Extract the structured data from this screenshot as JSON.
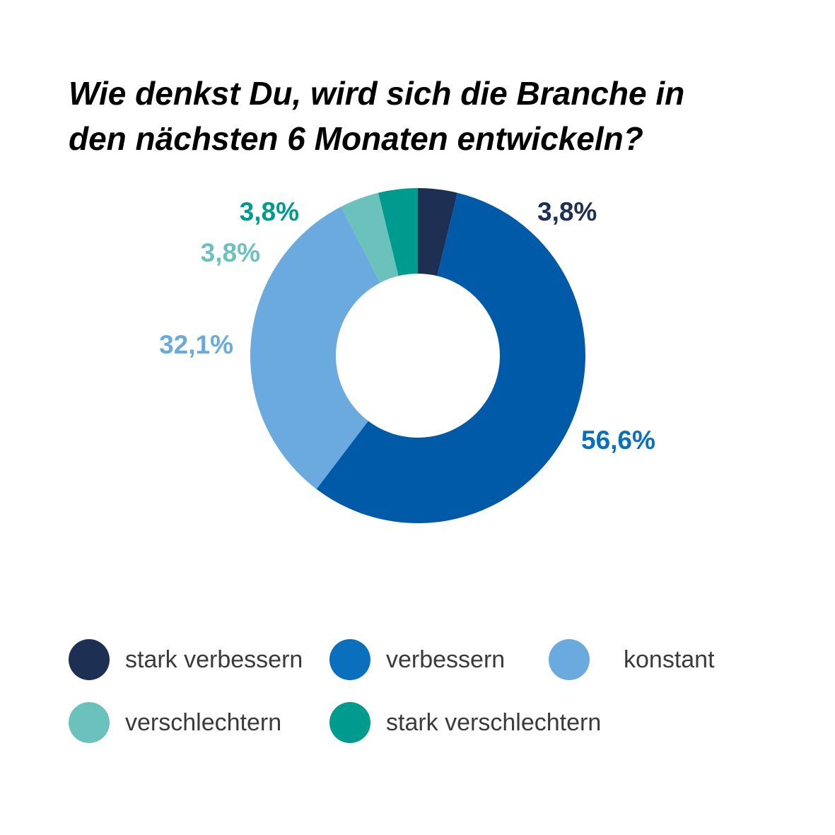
{
  "title": {
    "line1": "Wie denkst Du, wird sich die Branche in",
    "line2": "den nächsten 6 Monaten entwickeln?"
  },
  "chart_data": {
    "type": "pie",
    "variant": "donut",
    "title": "Wie denkst Du, wird sich die Branche in den nächsten 6 Monaten entwickeln?",
    "unit": "%",
    "legend_position": "bottom",
    "categories": [
      "stark verbessern",
      "verbessern",
      "konstant",
      "verschlechtern",
      "stark verschlechtern"
    ],
    "values": [
      3.8,
      56.6,
      32.1,
      3.8,
      3.8
    ],
    "labels": [
      "3,8%",
      "56,6%",
      "32,1%",
      "3,8%",
      "3,8%"
    ],
    "colors": [
      "#1e2f54",
      "#005aa8",
      "#6aaadf",
      "#6bc2bd",
      "#009b8f"
    ],
    "label_colors": [
      "#1e2f54",
      "#0a6fbd",
      "#6aaadf",
      "#6bc2bd",
      "#009b8f"
    ]
  },
  "legend": {
    "items": [
      {
        "label": "stark verbessern",
        "color": "#1e2f54"
      },
      {
        "label": "verbessern",
        "color": "#0a6fbd"
      },
      {
        "label": "konstant",
        "color": "#6aaadf"
      },
      {
        "label": "verschlechtern",
        "color": "#6bc2bd"
      },
      {
        "label": "stark verschlechtern",
        "color": "#009b8f"
      }
    ]
  }
}
